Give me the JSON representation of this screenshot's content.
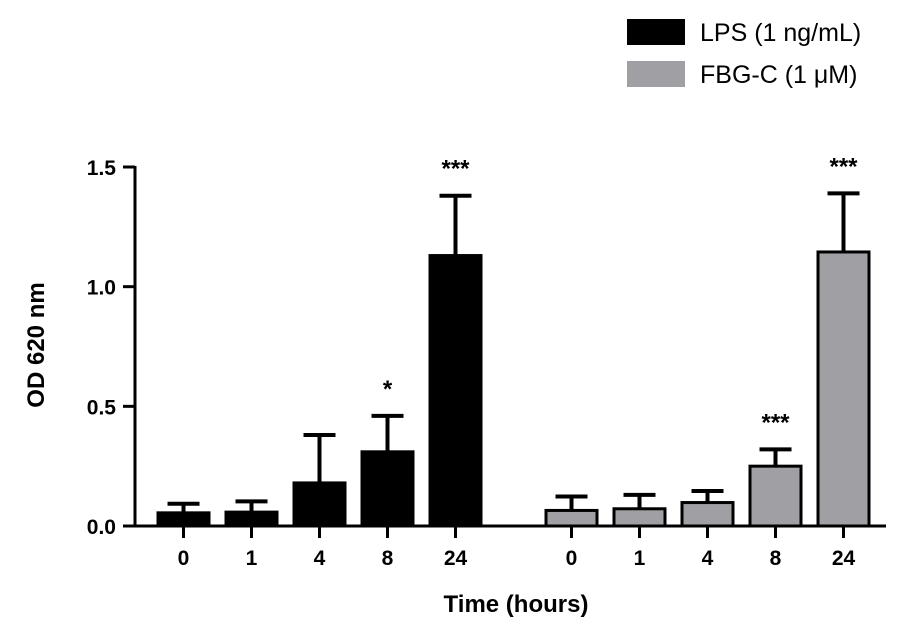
{
  "chart_data": {
    "type": "bar",
    "title": "",
    "xlabel": "Time (hours)",
    "ylabel": "OD 620 nm",
    "ylim": [
      0,
      1.5
    ],
    "yticks": [
      0.0,
      0.5,
      1.0,
      1.5
    ],
    "ytick_labels": [
      "0.0",
      "0.5",
      "1.0",
      "1.5"
    ],
    "grid": false,
    "legend_position": "top-right",
    "groups": [
      {
        "series_name": "LPS (1 ng/mL)",
        "color": "#000000",
        "categories": [
          "0",
          "1",
          "4",
          "8",
          "24"
        ],
        "values": [
          0.055,
          0.058,
          0.18,
          0.31,
          1.13
        ],
        "errors": [
          0.038,
          0.045,
          0.2,
          0.15,
          0.25
        ],
        "significance": [
          "",
          "",
          "",
          "*",
          "***"
        ]
      },
      {
        "series_name": "FBG-C  (1 μM)",
        "color": "#a0a0a4",
        "categories": [
          "0",
          "1",
          "4",
          "8",
          "24"
        ],
        "values": [
          0.065,
          0.072,
          0.098,
          0.25,
          1.145
        ],
        "errors": [
          0.058,
          0.058,
          0.048,
          0.07,
          0.245
        ],
        "significance": [
          "",
          "",
          "",
          "***",
          "***"
        ]
      }
    ]
  }
}
